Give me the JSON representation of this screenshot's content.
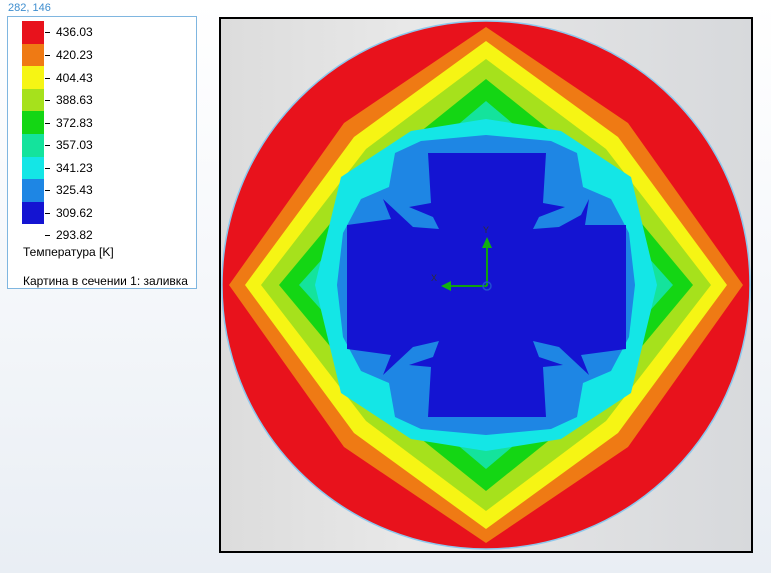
{
  "viewport": {
    "coordinates": "282, 146"
  },
  "legend": {
    "ticks": [
      "436.03",
      "420.23",
      "404.43",
      "388.63",
      "372.83",
      "357.03",
      "341.23",
      "325.43",
      "309.62",
      "293.82"
    ],
    "colors": [
      "#e8121c",
      "#ef7a14",
      "#f6f514",
      "#a6e11c",
      "#14d614",
      "#14e39c",
      "#14e6e6",
      "#1e86e4",
      "#1414d2"
    ],
    "title": "Температура [K]",
    "plot_name": "Картина в сечении 1: заливка"
  },
  "triad": {
    "x_label": "X",
    "y_label": "Y"
  }
}
